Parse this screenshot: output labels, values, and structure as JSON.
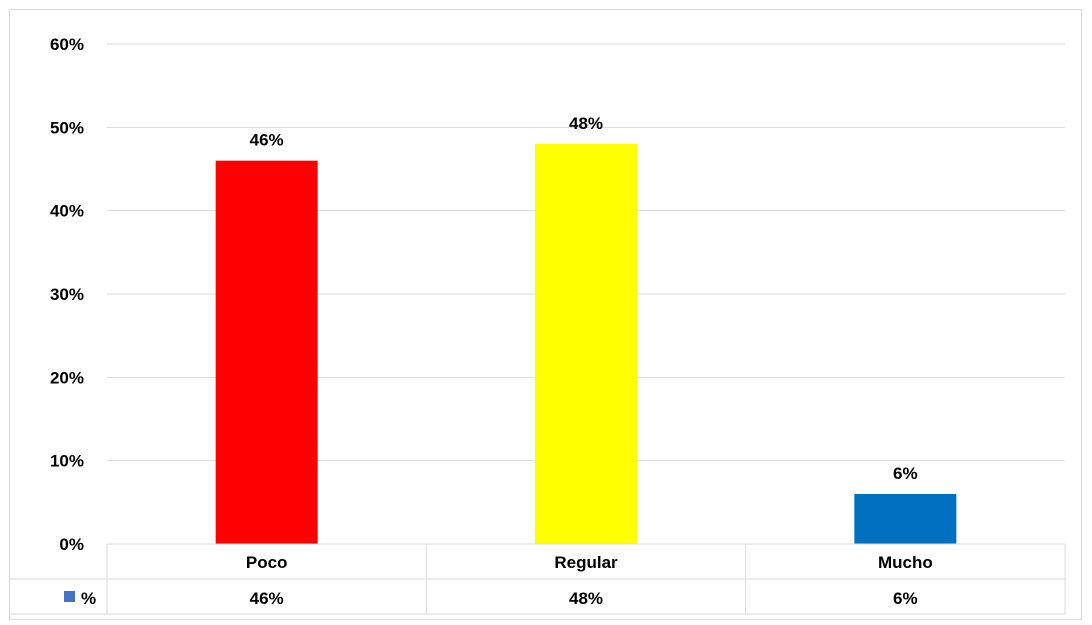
{
  "chart_data": {
    "type": "bar",
    "categories": [
      "Poco",
      "Regular",
      "Mucho"
    ],
    "series": [
      {
        "name": "%",
        "values": [
          46,
          48,
          6
        ],
        "labels": [
          "46%",
          "48%",
          "6%"
        ],
        "colors": [
          "#ff0000",
          "#ffff00",
          "#0070c0"
        ]
      }
    ],
    "ylim": [
      0,
      60
    ],
    "yticks": [
      0,
      10,
      20,
      30,
      40,
      50,
      60
    ],
    "ytick_labels": [
      "0%",
      "10%",
      "20%",
      "30%",
      "40%",
      "50%",
      "60%"
    ],
    "legend_marker_color": "#4472c4",
    "grid": true,
    "data_table": true,
    "title": "",
    "xlabel": "",
    "ylabel": ""
  }
}
